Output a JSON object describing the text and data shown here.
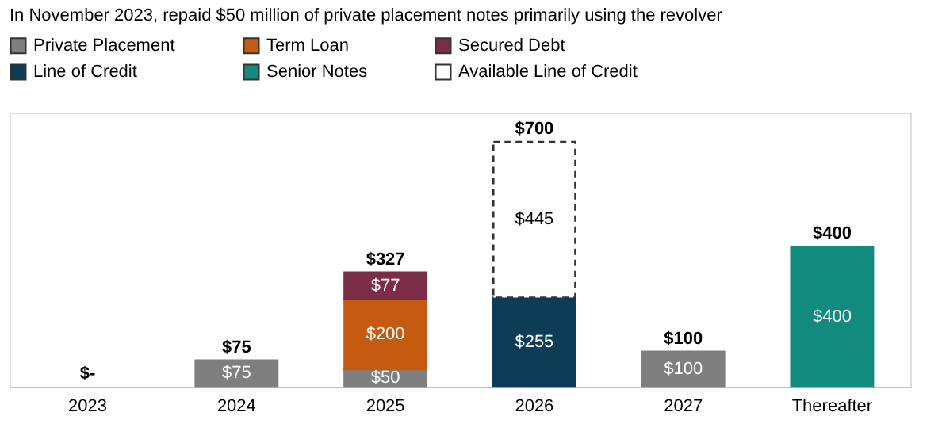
{
  "chart_data": {
    "type": "bar",
    "stacked": true,
    "categories": [
      "2023",
      "2024",
      "2025",
      "2026",
      "2027",
      "Thereafter"
    ],
    "series": [
      {
        "name": "Private Placement",
        "color": "#7f7f7f",
        "values": [
          null,
          75,
          50,
          null,
          100,
          null
        ],
        "value_labels": [
          null,
          "$75",
          "$50",
          null,
          "$100",
          null
        ]
      },
      {
        "name": "Term Loan",
        "color": "#c55a11",
        "values": [
          null,
          null,
          200,
          null,
          null,
          null
        ],
        "value_labels": [
          null,
          null,
          "$200",
          null,
          null,
          null
        ]
      },
      {
        "name": "Secured Debt",
        "color": "#7b2c47",
        "values": [
          null,
          null,
          77,
          null,
          null,
          null
        ],
        "value_labels": [
          null,
          null,
          "$77",
          null,
          null,
          null
        ]
      },
      {
        "name": "Line of Credit",
        "color": "#0d3d56",
        "values": [
          null,
          null,
          null,
          255,
          null,
          null
        ],
        "value_labels": [
          null,
          null,
          null,
          "$255",
          null,
          null
        ]
      },
      {
        "name": "Senior Notes",
        "color": "#138a7e",
        "values": [
          null,
          null,
          null,
          null,
          null,
          400
        ],
        "value_labels": [
          null,
          null,
          null,
          null,
          null,
          "$400"
        ]
      },
      {
        "name": "Available Line of Credit",
        "color": "#ffffff",
        "line_style": "dashed",
        "values": [
          null,
          null,
          null,
          445,
          null,
          null
        ],
        "value_labels": [
          null,
          null,
          null,
          "$445",
          null,
          null
        ]
      }
    ],
    "totals": [
      "$-",
      "$75",
      "$327",
      "$700",
      "$100",
      "$400"
    ],
    "legend": "top",
    "grid": false,
    "annotations": [
      "In November 2023, repaid $50 million of private placement notes primarily using the revolver"
    ]
  }
}
